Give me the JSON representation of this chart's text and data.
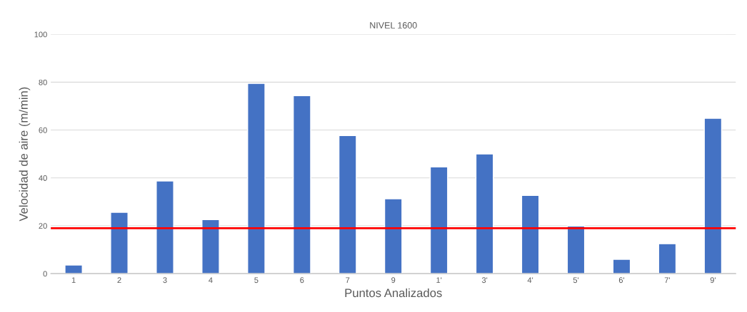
{
  "chart_data": {
    "type": "bar",
    "title": "NIVEL 1600",
    "xlabel": "Puntos Analizados",
    "ylabel": "Velocidad de aire (m/min)",
    "categories": [
      "1",
      "2",
      "3",
      "4",
      "5",
      "6",
      "7",
      "9",
      "1'",
      "3'",
      "4'",
      "5'",
      "6'",
      "7'",
      "9'"
    ],
    "values": [
      3.6,
      25.6,
      38.7,
      22.6,
      79.5,
      74.4,
      57.7,
      31.3,
      44.6,
      50,
      32.7,
      19.9,
      6,
      12.5,
      64.9
    ],
    "color": "#4472c4",
    "ylim": [
      0,
      100
    ],
    "yticks": [
      0,
      20,
      40,
      60,
      80,
      100
    ],
    "grid": "y",
    "ref_lines": [
      {
        "axis": "y",
        "value": 19,
        "color": "#ff0000"
      }
    ]
  }
}
